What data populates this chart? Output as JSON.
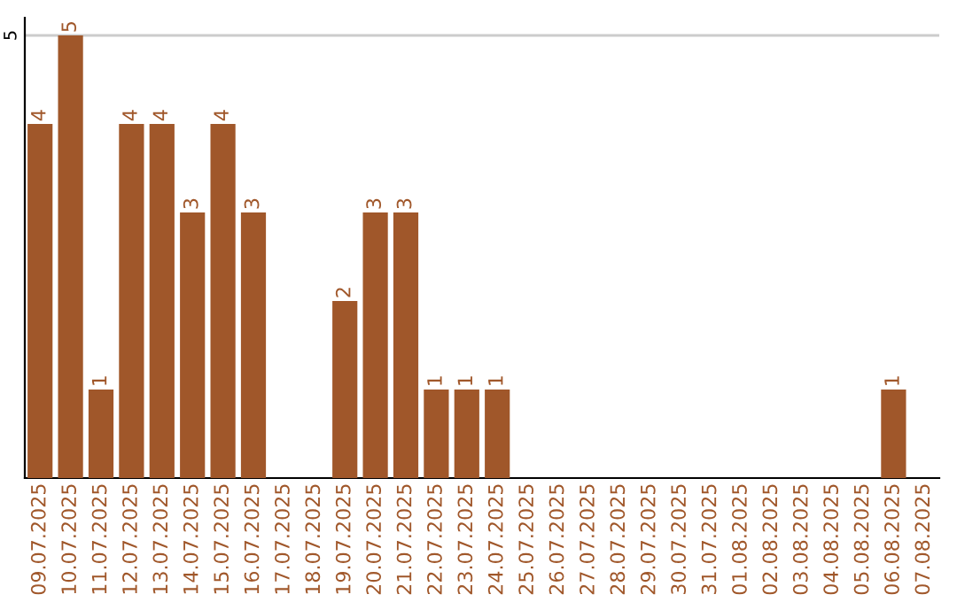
{
  "chart_data": {
    "type": "bar",
    "categories": [
      "09.07.2025",
      "10.07.2025",
      "11.07.2025",
      "12.07.2025",
      "13.07.2025",
      "14.07.2025",
      "15.07.2025",
      "16.07.2025",
      "17.07.2025",
      "18.07.2025",
      "19.07.2025",
      "20.07.2025",
      "21.07.2025",
      "22.07.2025",
      "23.07.2025",
      "24.07.2025",
      "25.07.2025",
      "26.07.2025",
      "27.07.2025",
      "28.07.2025",
      "29.07.2025",
      "30.07.2025",
      "31.07.2025",
      "01.08.2025",
      "02.08.2025",
      "03.08.2025",
      "04.08.2025",
      "05.08.2025",
      "06.08.2025",
      "07.08.2025"
    ],
    "values": [
      4,
      5,
      1,
      4,
      4,
      3,
      4,
      3,
      0,
      0,
      2,
      3,
      3,
      1,
      1,
      1,
      0,
      0,
      0,
      0,
      0,
      0,
      0,
      0,
      0,
      0,
      0,
      0,
      1,
      0
    ],
    "value_labels": [
      "4",
      "5",
      "1",
      "4",
      "4",
      "3",
      "4",
      "3",
      null,
      null,
      "2",
      "3",
      "3",
      "1",
      "1",
      "1",
      null,
      null,
      null,
      null,
      null,
      null,
      null,
      null,
      null,
      null,
      null,
      null,
      "1",
      null
    ],
    "color": "#a0572a",
    "ylim": [
      0,
      5.2
    ],
    "yticks": [
      5
    ],
    "grid": "y"
  }
}
